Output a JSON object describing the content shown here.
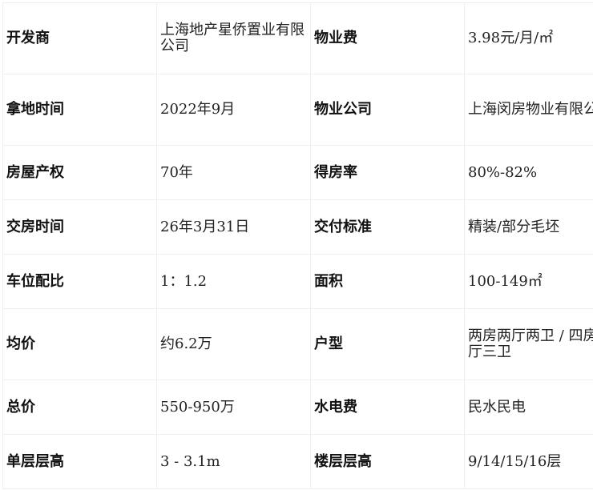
{
  "rows": [
    {
      "k1": "开发商",
      "v1": "上海地产星侨置业有限公司",
      "k2": "物业费",
      "v2": "3.98元/月/㎡"
    },
    {
      "k1": "拿地时间",
      "v1": "2022年9月",
      "k2": "物业公司",
      "v2": "上海闵房物业有限公司"
    },
    {
      "k1": "房屋产权",
      "v1": "70年",
      "k2": "得房率",
      "v2": "80%-82%"
    },
    {
      "k1": "交房时间",
      "v1": "26年3月31日",
      "k2": "交付标准",
      "v2": "精装/部分毛坯"
    },
    {
      "k1": "车位配比",
      "v1": "1：1.2",
      "k2": "面积",
      "v2": "100-149㎡"
    },
    {
      "k1": "均价",
      "v1": "约6.2万",
      "k2": "户型",
      "v2": "两房两厅两卫 / 四房两厅三卫"
    },
    {
      "k1": "总价",
      "v1": "550-950万",
      "k2": "水电费",
      "v2": "民水民电"
    },
    {
      "k1": "单层层高",
      "v1": "3 - 3.1m",
      "k2": "楼层层高",
      "v2": "9/14/15/16层"
    }
  ]
}
